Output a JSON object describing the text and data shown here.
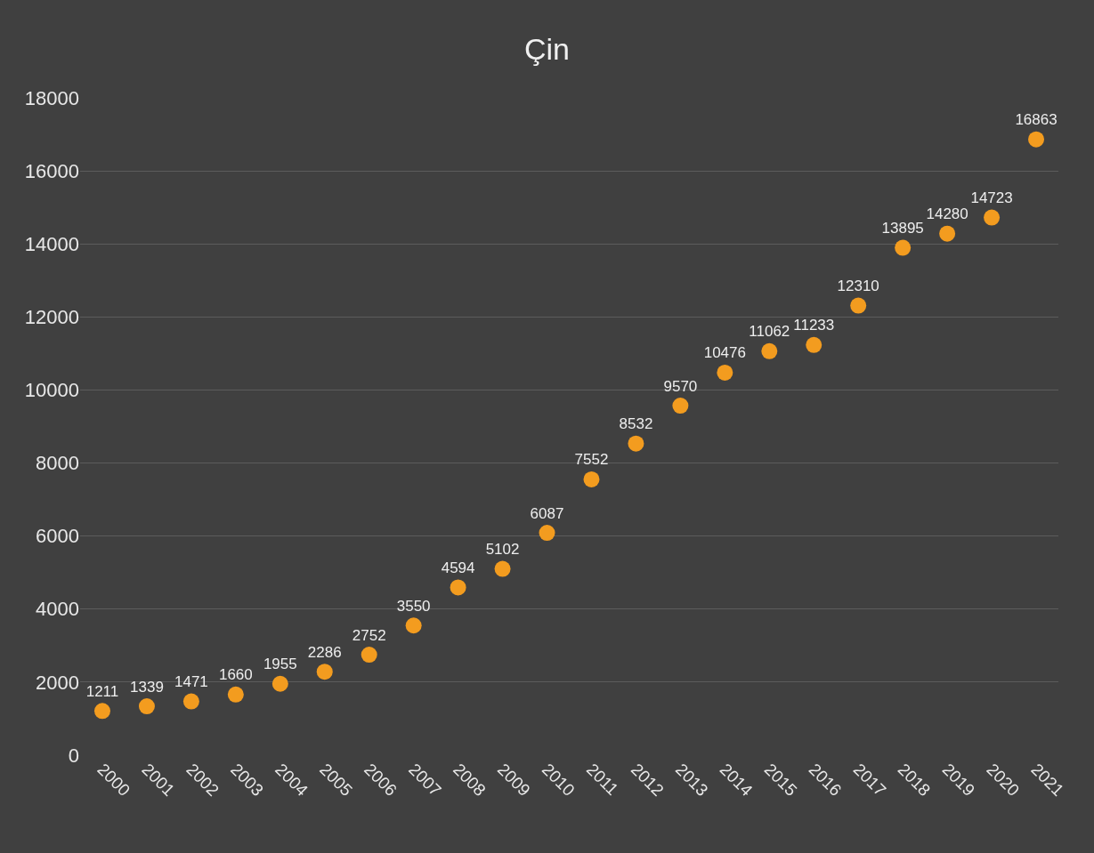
{
  "chart_data": {
    "type": "scatter",
    "title": "Çin",
    "categories": [
      "2000",
      "2001",
      "2002",
      "2003",
      "2004",
      "2005",
      "2006",
      "2007",
      "2008",
      "2009",
      "2010",
      "2011",
      "2012",
      "2013",
      "2014",
      "2015",
      "2016",
      "2017",
      "2018",
      "2019",
      "2020",
      "2021"
    ],
    "values": [
      1211,
      1339,
      1471,
      1660,
      1955,
      2286,
      2752,
      3550,
      4594,
      5102,
      6087,
      7552,
      8532,
      9570,
      10476,
      11062,
      11233,
      12310,
      13895,
      14280,
      14723,
      16863
    ],
    "color": "#f39c1f",
    "ylim": [
      0,
      18000
    ],
    "yticks": [
      0,
      2000,
      4000,
      6000,
      8000,
      10000,
      12000,
      14000,
      16000,
      18000
    ],
    "grid": "y",
    "marker": "circle",
    "data_labels": true,
    "legend": false
  }
}
